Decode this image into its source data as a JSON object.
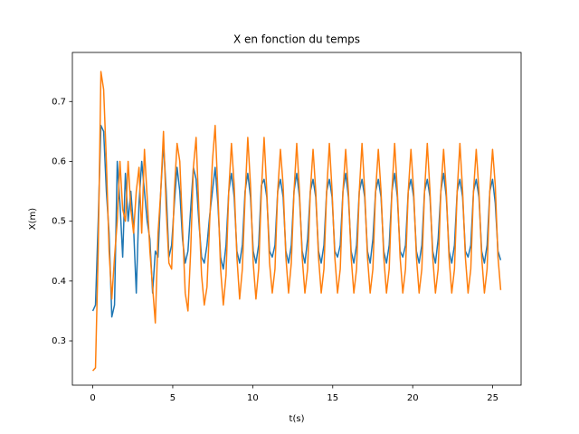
{
  "chart_data": {
    "type": "line",
    "title": "X en fonction du temps",
    "xlabel": "t(s)",
    "ylabel": "X(m)",
    "x": [
      0,
      0.17,
      0.34,
      0.51,
      0.68,
      0.85,
      1.02,
      1.19,
      1.36,
      1.53,
      1.7,
      1.87,
      2.04,
      2.21,
      2.38,
      2.55,
      2.72,
      2.89,
      3.06,
      3.23,
      3.4,
      3.57,
      3.74,
      3.91,
      4.08,
      4.25,
      4.42,
      4.59,
      4.76,
      4.93,
      5.1,
      5.27,
      5.44,
      5.61,
      5.78,
      5.95,
      6.12,
      6.29,
      6.46,
      6.63,
      6.8,
      6.97,
      7.14,
      7.31,
      7.48,
      7.65,
      7.82,
      7.99,
      8.16,
      8.33,
      8.5,
      8.67,
      8.84,
      9.01,
      9.18,
      9.35,
      9.52,
      9.69,
      9.86,
      10.03,
      10.2,
      10.37,
      10.54,
      10.71,
      10.88,
      11.05,
      11.22,
      11.39,
      11.56,
      11.73,
      11.9,
      12.07,
      12.24,
      12.41,
      12.58,
      12.75,
      12.92,
      13.09,
      13.26,
      13.43,
      13.6,
      13.77,
      13.94,
      14.11,
      14.28,
      14.45,
      14.62,
      14.79,
      14.96,
      15.13,
      15.3,
      15.47,
      15.64,
      15.81,
      15.98,
      16.15,
      16.32,
      16.49,
      16.66,
      16.83,
      17,
      17.17,
      17.34,
      17.51,
      17.68,
      17.85,
      18.02,
      18.19,
      18.36,
      18.53,
      18.7,
      18.87,
      19.04,
      19.21,
      19.38,
      19.55,
      19.72,
      19.89,
      20.06,
      20.23,
      20.4,
      20.57,
      20.74,
      20.91,
      21.08,
      21.25,
      21.42,
      21.59,
      21.76,
      21.93,
      22.1,
      22.27,
      22.44,
      22.61,
      22.78,
      22.95,
      23.12,
      23.29,
      23.46,
      23.63,
      23.8,
      23.97,
      24.14,
      24.31,
      24.48,
      24.65,
      24.82,
      24.99,
      25.16,
      25.33,
      25.5
    ],
    "series": [
      {
        "color": "#1f77b4",
        "values": [
          0.35,
          0.36,
          0.5,
          0.66,
          0.65,
          0.55,
          0.48,
          0.34,
          0.36,
          0.6,
          0.53,
          0.44,
          0.58,
          0.5,
          0.55,
          0.49,
          0.38,
          0.53,
          0.6,
          0.55,
          0.5,
          0.47,
          0.38,
          0.45,
          0.44,
          0.55,
          0.63,
          0.55,
          0.44,
          0.46,
          0.53,
          0.59,
          0.55,
          0.47,
          0.43,
          0.45,
          0.52,
          0.59,
          0.57,
          0.5,
          0.44,
          0.43,
          0.46,
          0.51,
          0.55,
          0.59,
          0.53,
          0.44,
          0.42,
          0.46,
          0.55,
          0.58,
          0.54,
          0.45,
          0.43,
          0.46,
          0.55,
          0.58,
          0.54,
          0.45,
          0.43,
          0.46,
          0.56,
          0.57,
          0.54,
          0.45,
          0.44,
          0.46,
          0.55,
          0.57,
          0.54,
          0.45,
          0.43,
          0.46,
          0.55,
          0.58,
          0.54,
          0.45,
          0.43,
          0.47,
          0.55,
          0.57,
          0.54,
          0.45,
          0.43,
          0.46,
          0.55,
          0.57,
          0.54,
          0.45,
          0.44,
          0.46,
          0.55,
          0.58,
          0.54,
          0.45,
          0.43,
          0.46,
          0.55,
          0.57,
          0.54,
          0.45,
          0.43,
          0.47,
          0.55,
          0.57,
          0.54,
          0.45,
          0.43,
          0.46,
          0.55,
          0.58,
          0.54,
          0.45,
          0.44,
          0.46,
          0.55,
          0.57,
          0.54,
          0.45,
          0.43,
          0.46,
          0.55,
          0.57,
          0.54,
          0.45,
          0.43,
          0.47,
          0.55,
          0.58,
          0.54,
          0.45,
          0.43,
          0.46,
          0.55,
          0.57,
          0.54,
          0.45,
          0.44,
          0.46,
          0.55,
          0.57,
          0.54,
          0.45,
          0.43,
          0.46,
          0.55,
          0.57,
          0.53,
          0.45,
          0.435
        ]
      },
      {
        "color": "#ff7f0e",
        "values": [
          0.25,
          0.255,
          0.45,
          0.75,
          0.72,
          0.6,
          0.45,
          0.37,
          0.44,
          0.5,
          0.6,
          0.52,
          0.5,
          0.6,
          0.52,
          0.48,
          0.55,
          0.59,
          0.48,
          0.62,
          0.54,
          0.45,
          0.39,
          0.33,
          0.48,
          0.55,
          0.65,
          0.52,
          0.43,
          0.42,
          0.55,
          0.63,
          0.6,
          0.49,
          0.38,
          0.35,
          0.45,
          0.59,
          0.64,
          0.52,
          0.41,
          0.36,
          0.39,
          0.5,
          0.6,
          0.66,
          0.55,
          0.42,
          0.36,
          0.41,
          0.55,
          0.63,
          0.56,
          0.44,
          0.37,
          0.42,
          0.54,
          0.64,
          0.56,
          0.43,
          0.37,
          0.42,
          0.55,
          0.64,
          0.55,
          0.43,
          0.38,
          0.42,
          0.55,
          0.62,
          0.56,
          0.44,
          0.38,
          0.43,
          0.55,
          0.63,
          0.55,
          0.44,
          0.38,
          0.42,
          0.55,
          0.62,
          0.55,
          0.44,
          0.38,
          0.42,
          0.55,
          0.63,
          0.55,
          0.44,
          0.38,
          0.42,
          0.55,
          0.62,
          0.55,
          0.44,
          0.38,
          0.42,
          0.55,
          0.63,
          0.55,
          0.44,
          0.38,
          0.42,
          0.55,
          0.62,
          0.55,
          0.44,
          0.38,
          0.42,
          0.55,
          0.63,
          0.55,
          0.44,
          0.38,
          0.42,
          0.55,
          0.62,
          0.55,
          0.44,
          0.38,
          0.42,
          0.55,
          0.63,
          0.55,
          0.44,
          0.38,
          0.42,
          0.55,
          0.62,
          0.55,
          0.44,
          0.38,
          0.42,
          0.55,
          0.63,
          0.55,
          0.44,
          0.38,
          0.42,
          0.55,
          0.62,
          0.55,
          0.44,
          0.38,
          0.42,
          0.55,
          0.62,
          0.56,
          0.44,
          0.385
        ]
      }
    ],
    "xlim": [
      -1.275,
      26.775
    ],
    "ylim": [
      0.226,
      0.782
    ],
    "xticks": [
      0,
      5,
      10,
      15,
      20,
      25
    ],
    "yticks": [
      0.3,
      0.4,
      0.5,
      0.6,
      0.7
    ]
  }
}
